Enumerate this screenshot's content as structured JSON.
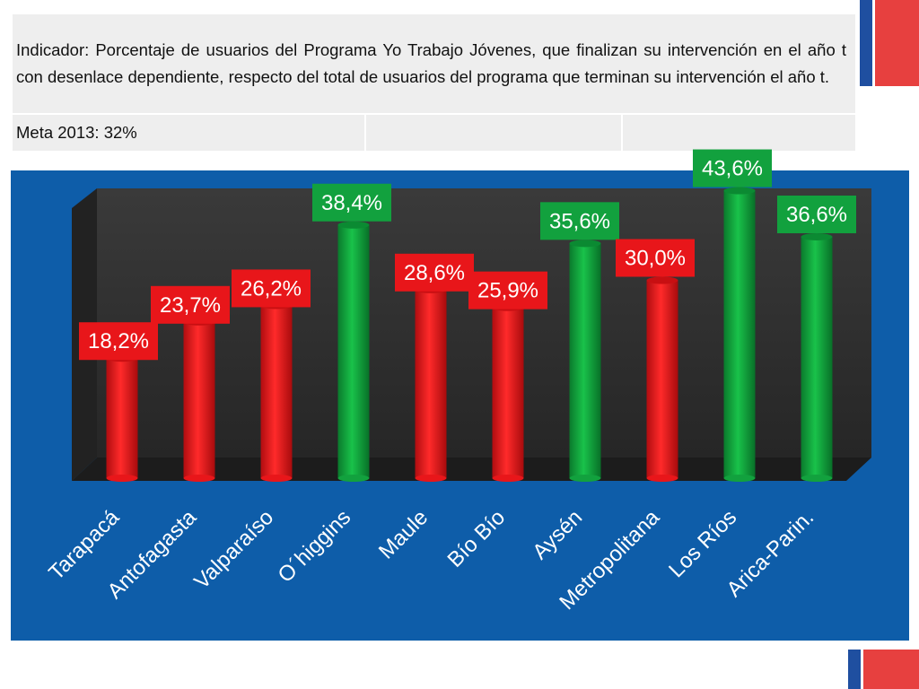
{
  "header": {
    "indicator_text": "Indicador: Porcentaje de usuarios del Programa Yo Trabajo Jóvenes, que finalizan su intervención en el año t con desenlace dependiente, respecto del total de usuarios del programa que terminan su intervención el año t.",
    "meta_label": "Meta 2013: 32%",
    "empty_cell_1": "",
    "empty_cell_2": ""
  },
  "colors": {
    "panel": "#0e5da9",
    "above_goal": "#12a13e",
    "below_goal": "#e8161a",
    "stripe_blue": "#1f4fa0",
    "stripe_red": "#e7403f"
  },
  "chart_data": {
    "type": "bar",
    "title": "",
    "xlabel": "",
    "ylabel": "",
    "ylim": [
      0,
      45
    ],
    "grid": false,
    "categories": [
      "Tarapacá",
      "Antofagasta",
      "Valparaíso",
      "O´higgins",
      "Maule",
      "Bío Bío",
      "Aysén",
      "Metropolitana",
      "Los Ríos",
      "Arica-Parin."
    ],
    "values": [
      18.2,
      23.7,
      26.2,
      38.4,
      28.6,
      25.9,
      35.6,
      30.0,
      43.6,
      36.6
    ],
    "value_labels": [
      "18,2%",
      "23,7%",
      "26,2%",
      "38,4%",
      "28,6%",
      "25,9%",
      "35,6%",
      "30,0%",
      "43,6%",
      "36,6%"
    ],
    "bar_colors": [
      "red",
      "red",
      "red",
      "green",
      "red",
      "red",
      "green",
      "red",
      "green",
      "green"
    ]
  }
}
